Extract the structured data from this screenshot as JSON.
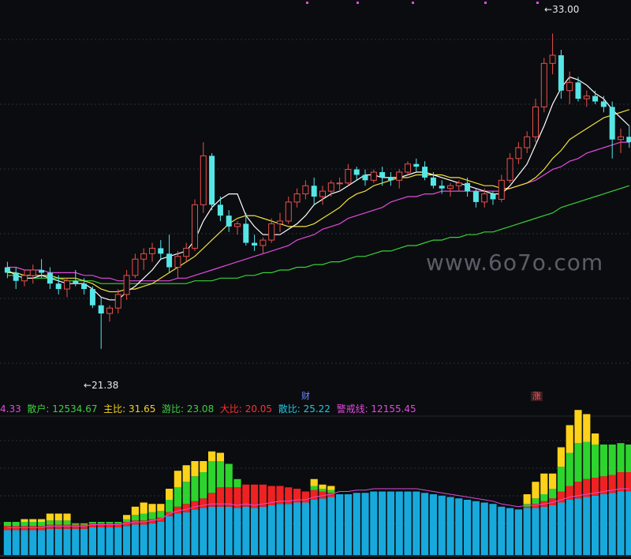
{
  "price_panel": {
    "high_label": "33.00",
    "low_label": "21.38",
    "watermark": "www.6o7o.com"
  },
  "events": [
    {
      "text": "财",
      "color": "#6f8cff"
    },
    {
      "text": "涨",
      "color": "#ff5a5a"
    }
  ],
  "indicator_legend": {
    "items": [
      {
        "label": "",
        "value": "4.33",
        "color": "#e04bdb"
      },
      {
        "label": "散户: ",
        "value": "12534.67",
        "color": "#3ed13e"
      },
      {
        "label": "主比: ",
        "value": "31.65",
        "color": "#f2d11b"
      },
      {
        "label": "游比: ",
        "value": "23.08",
        "color": "#3ed13e"
      },
      {
        "label": "大比: ",
        "value": "20.05",
        "color": "#ff3030"
      },
      {
        "label": "散比: ",
        "value": "25.22",
        "color": "#22c7e0"
      },
      {
        "label": "警戒线: ",
        "value": "12155.45",
        "color": "#e04bdb"
      }
    ]
  },
  "colors": {
    "up": "#e8504a",
    "down": "#56e6e6",
    "ma5": "#ffffff",
    "ma10": "#f1e03a",
    "ma20": "#e04bdb",
    "ma60": "#37d137",
    "stack_blue": "#17a9dc",
    "stack_red": "#ee2222",
    "stack_green": "#2dd42d",
    "stack_yellow": "#ffd21a",
    "grid": "#2a2f3a"
  },
  "chart_data": {
    "type": "candlestick",
    "price_range": [
      20,
      34
    ],
    "candles": [
      [
        24.4,
        24.6,
        24.0,
        24.2
      ],
      [
        24.2,
        24.4,
        23.6,
        23.9
      ],
      [
        23.9,
        24.3,
        23.7,
        24.1
      ],
      [
        24.1,
        24.5,
        23.8,
        24.3
      ],
      [
        24.3,
        24.7,
        24.0,
        24.2
      ],
      [
        24.2,
        24.4,
        23.6,
        23.8
      ],
      [
        23.8,
        24.1,
        23.4,
        23.6
      ],
      [
        23.6,
        24.0,
        23.3,
        23.9
      ],
      [
        23.9,
        24.3,
        23.7,
        23.8
      ],
      [
        23.8,
        24.0,
        23.4,
        23.6
      ],
      [
        23.6,
        23.7,
        22.9,
        23.0
      ],
      [
        23.0,
        23.3,
        21.4,
        22.7
      ],
      [
        22.7,
        23.0,
        22.4,
        22.9
      ],
      [
        22.9,
        23.6,
        22.7,
        23.4
      ],
      [
        23.4,
        24.3,
        23.2,
        24.1
      ],
      [
        24.1,
        24.9,
        24.0,
        24.7
      ],
      [
        24.7,
        25.1,
        24.3,
        24.9
      ],
      [
        24.9,
        25.3,
        24.6,
        25.1
      ],
      [
        25.1,
        25.4,
        24.7,
        24.9
      ],
      [
        24.9,
        25.6,
        24.2,
        24.4
      ],
      [
        24.4,
        25.0,
        24.0,
        24.8
      ],
      [
        24.8,
        25.3,
        24.6,
        25.1
      ],
      [
        25.1,
        26.9,
        25.0,
        26.7
      ],
      [
        26.7,
        29.0,
        26.4,
        28.5
      ],
      [
        28.5,
        28.6,
        26.5,
        26.7
      ],
      [
        26.7,
        27.0,
        26.1,
        26.3
      ],
      [
        26.3,
        26.5,
        25.7,
        25.9
      ],
      [
        25.9,
        26.1,
        25.6,
        26.0
      ],
      [
        26.0,
        26.4,
        25.2,
        25.3
      ],
      [
        25.3,
        25.6,
        25.0,
        25.2
      ],
      [
        25.2,
        25.5,
        24.9,
        25.4
      ],
      [
        25.4,
        26.2,
        25.3,
        26.0
      ],
      [
        26.0,
        26.4,
        25.7,
        26.1
      ],
      [
        26.1,
        27.0,
        26.0,
        26.8
      ],
      [
        26.8,
        27.3,
        26.6,
        27.1
      ],
      [
        27.1,
        27.6,
        26.9,
        27.4
      ],
      [
        27.4,
        27.7,
        26.7,
        27.0
      ],
      [
        27.0,
        27.4,
        26.7,
        27.2
      ],
      [
        27.2,
        27.6,
        27.0,
        27.5
      ],
      [
        27.5,
        27.7,
        27.2,
        27.5
      ],
      [
        27.5,
        28.2,
        27.4,
        28.0
      ],
      [
        28.0,
        28.1,
        27.6,
        27.8
      ],
      [
        27.8,
        28.0,
        27.4,
        27.6
      ],
      [
        27.6,
        28.0,
        27.5,
        27.9
      ],
      [
        27.9,
        28.1,
        27.4,
        27.7
      ],
      [
        27.7,
        27.9,
        27.4,
        27.6
      ],
      [
        27.6,
        28.0,
        27.3,
        27.9
      ],
      [
        27.9,
        28.3,
        27.8,
        28.2
      ],
      [
        28.2,
        28.4,
        27.9,
        28.1
      ],
      [
        28.1,
        28.3,
        27.6,
        27.7
      ],
      [
        27.7,
        27.9,
        27.3,
        27.4
      ],
      [
        27.4,
        27.6,
        27.1,
        27.3
      ],
      [
        27.3,
        27.5,
        27.0,
        27.4
      ],
      [
        27.4,
        27.6,
        27.2,
        27.5
      ],
      [
        27.5,
        27.7,
        27.0,
        27.2
      ],
      [
        27.2,
        27.3,
        26.6,
        26.8
      ],
      [
        26.8,
        27.3,
        26.6,
        27.1
      ],
      [
        27.1,
        27.2,
        26.7,
        26.9
      ],
      [
        26.9,
        27.8,
        26.8,
        27.6
      ],
      [
        27.6,
        28.6,
        27.5,
        28.4
      ],
      [
        28.4,
        29.0,
        28.2,
        28.8
      ],
      [
        28.8,
        29.4,
        28.6,
        29.2
      ],
      [
        29.2,
        30.6,
        29.0,
        30.3
      ],
      [
        30.3,
        32.1,
        30.1,
        31.9
      ],
      [
        31.9,
        33.0,
        31.5,
        32.2
      ],
      [
        32.2,
        32.4,
        30.6,
        30.9
      ],
      [
        30.9,
        31.6,
        30.4,
        31.2
      ],
      [
        31.2,
        31.4,
        30.5,
        30.6
      ],
      [
        30.6,
        30.9,
        30.3,
        30.7
      ],
      [
        30.7,
        30.9,
        30.4,
        30.5
      ],
      [
        30.5,
        30.7,
        30.1,
        30.3
      ],
      [
        30.3,
        30.5,
        28.4,
        29.1
      ],
      [
        29.1,
        29.5,
        28.6,
        29.2
      ],
      [
        29.2,
        29.6,
        28.8,
        29.0
      ]
    ],
    "ma5": [
      24.3,
      24.1,
      24.0,
      24.0,
      24.1,
      24.0,
      23.9,
      23.8,
      23.8,
      23.8,
      23.6,
      23.3,
      23.2,
      23.2,
      23.5,
      23.7,
      24.0,
      24.3,
      24.7,
      24.8,
      24.9,
      25.0,
      25.4,
      26.1,
      26.6,
      26.9,
      27.1,
      27.1,
      26.3,
      25.9,
      25.6,
      25.6,
      25.6,
      25.8,
      26.0,
      26.3,
      26.7,
      26.9,
      27.1,
      27.2,
      27.4,
      27.6,
      27.8,
      27.8,
      27.7,
      27.7,
      27.7,
      27.8,
      27.9,
      27.9,
      27.8,
      27.7,
      27.6,
      27.5,
      27.4,
      27.3,
      27.2,
      27.1,
      27.1,
      27.4,
      27.8,
      28.2,
      28.9,
      29.6,
      30.4,
      31.0,
      31.4,
      31.3,
      31.1,
      30.8,
      30.6,
      30.2,
      29.9,
      29.6
    ],
    "ma10": [
      24.2,
      24.2,
      24.1,
      24.1,
      24.1,
      24.1,
      24.0,
      24.0,
      24.0,
      23.9,
      23.8,
      23.6,
      23.5,
      23.5,
      23.6,
      23.6,
      23.7,
      23.8,
      24.0,
      24.2,
      24.4,
      24.6,
      24.8,
      25.1,
      25.4,
      25.7,
      26.0,
      26.2,
      26.3,
      26.3,
      26.2,
      26.1,
      26.0,
      25.9,
      25.9,
      25.9,
      26.0,
      26.2,
      26.4,
      26.6,
      26.9,
      27.1,
      27.2,
      27.4,
      27.5,
      27.6,
      27.7,
      27.7,
      27.8,
      27.8,
      27.8,
      27.8,
      27.7,
      27.7,
      27.6,
      27.5,
      27.4,
      27.4,
      27.3,
      27.3,
      27.4,
      27.5,
      27.7,
      28.0,
      28.4,
      28.7,
      29.1,
      29.3,
      29.5,
      29.7,
      29.9,
      30.0,
      30.1,
      30.2
    ],
    "ma20": [
      24.4,
      24.4,
      24.3,
      24.3,
      24.3,
      24.2,
      24.2,
      24.2,
      24.2,
      24.1,
      24.1,
      24.0,
      24.0,
      23.9,
      23.9,
      23.9,
      23.9,
      23.9,
      23.9,
      23.9,
      24.0,
      24.0,
      24.1,
      24.2,
      24.3,
      24.4,
      24.5,
      24.6,
      24.7,
      24.8,
      24.9,
      25.0,
      25.1,
      25.2,
      25.4,
      25.5,
      25.6,
      25.8,
      25.9,
      26.0,
      26.2,
      26.3,
      26.4,
      26.5,
      26.6,
      26.8,
      26.9,
      27.0,
      27.0,
      27.1,
      27.1,
      27.2,
      27.2,
      27.2,
      27.2,
      27.2,
      27.2,
      27.2,
      27.2,
      27.3,
      27.4,
      27.5,
      27.6,
      27.8,
      28.0,
      28.1,
      28.3,
      28.4,
      28.6,
      28.7,
      28.8,
      28.9,
      29.0,
      29.0
    ],
    "ma60": [
      24.1,
      24.1,
      24.0,
      24.0,
      24.0,
      24.0,
      24.0,
      23.9,
      23.9,
      23.9,
      23.9,
      23.8,
      23.8,
      23.8,
      23.8,
      23.8,
      23.8,
      23.8,
      23.8,
      23.8,
      23.8,
      23.8,
      23.9,
      23.9,
      23.9,
      24.0,
      24.0,
      24.0,
      24.1,
      24.1,
      24.2,
      24.2,
      24.3,
      24.3,
      24.4,
      24.4,
      24.5,
      24.5,
      24.6,
      24.6,
      24.7,
      24.8,
      24.8,
      24.9,
      25.0,
      25.0,
      25.1,
      25.2,
      25.2,
      25.3,
      25.4,
      25.4,
      25.5,
      25.5,
      25.6,
      25.6,
      25.7,
      25.7,
      25.8,
      25.9,
      26.0,
      26.1,
      26.2,
      26.3,
      26.4,
      26.6,
      26.7,
      26.8,
      26.9,
      27.0,
      27.1,
      27.2,
      27.3,
      27.4
    ],
    "stack_range": [
      0,
      1
    ],
    "stacks": [
      [
        0.18,
        0.03,
        0.03,
        0.0
      ],
      [
        0.18,
        0.03,
        0.03,
        0.0
      ],
      [
        0.18,
        0.03,
        0.03,
        0.02
      ],
      [
        0.18,
        0.03,
        0.03,
        0.02
      ],
      [
        0.18,
        0.03,
        0.03,
        0.02
      ],
      [
        0.19,
        0.03,
        0.03,
        0.05
      ],
      [
        0.19,
        0.03,
        0.03,
        0.05
      ],
      [
        0.19,
        0.03,
        0.03,
        0.05
      ],
      [
        0.19,
        0.03,
        0.01,
        0.0
      ],
      [
        0.19,
        0.03,
        0.01,
        0.0
      ],
      [
        0.2,
        0.03,
        0.01,
        0.0
      ],
      [
        0.2,
        0.03,
        0.01,
        0.0
      ],
      [
        0.2,
        0.03,
        0.01,
        0.0
      ],
      [
        0.2,
        0.03,
        0.01,
        0.0
      ],
      [
        0.21,
        0.03,
        0.02,
        0.03
      ],
      [
        0.22,
        0.03,
        0.04,
        0.06
      ],
      [
        0.22,
        0.03,
        0.05,
        0.08
      ],
      [
        0.23,
        0.03,
        0.05,
        0.06
      ],
      [
        0.24,
        0.03,
        0.05,
        0.05
      ],
      [
        0.28,
        0.03,
        0.09,
        0.08
      ],
      [
        0.3,
        0.05,
        0.14,
        0.12
      ],
      [
        0.31,
        0.06,
        0.16,
        0.12
      ],
      [
        0.33,
        0.06,
        0.18,
        0.11
      ],
      [
        0.34,
        0.07,
        0.19,
        0.08
      ],
      [
        0.35,
        0.1,
        0.23,
        0.07
      ],
      [
        0.35,
        0.14,
        0.19,
        0.06
      ],
      [
        0.35,
        0.14,
        0.17,
        0.0
      ],
      [
        0.34,
        0.15,
        0.06,
        0.0
      ],
      [
        0.35,
        0.16,
        0.0,
        0.0
      ],
      [
        0.34,
        0.17,
        0.0,
        0.0
      ],
      [
        0.35,
        0.16,
        0.0,
        0.0
      ],
      [
        0.36,
        0.14,
        0.0,
        0.0
      ],
      [
        0.37,
        0.13,
        0.0,
        0.0
      ],
      [
        0.37,
        0.12,
        0.0,
        0.0
      ],
      [
        0.38,
        0.1,
        0.0,
        0.0
      ],
      [
        0.38,
        0.08,
        0.0,
        0.0
      ],
      [
        0.4,
        0.07,
        0.03,
        0.05
      ],
      [
        0.41,
        0.05,
        0.02,
        0.03
      ],
      [
        0.42,
        0.03,
        0.02,
        0.03
      ],
      [
        0.44,
        0.0,
        0.0,
        0.0
      ],
      [
        0.44,
        0.0,
        0.0,
        0.0
      ],
      [
        0.45,
        0.0,
        0.0,
        0.0
      ],
      [
        0.45,
        0.0,
        0.0,
        0.0
      ],
      [
        0.46,
        0.0,
        0.0,
        0.0
      ],
      [
        0.46,
        0.0,
        0.0,
        0.0
      ],
      [
        0.46,
        0.0,
        0.0,
        0.0
      ],
      [
        0.46,
        0.0,
        0.0,
        0.0
      ],
      [
        0.46,
        0.0,
        0.0,
        0.0
      ],
      [
        0.46,
        0.0,
        0.0,
        0.0
      ],
      [
        0.45,
        0.0,
        0.0,
        0.0
      ],
      [
        0.44,
        0.0,
        0.0,
        0.0
      ],
      [
        0.43,
        0.0,
        0.0,
        0.0
      ],
      [
        0.42,
        0.0,
        0.0,
        0.0
      ],
      [
        0.41,
        0.0,
        0.0,
        0.0
      ],
      [
        0.4,
        0.0,
        0.0,
        0.0
      ],
      [
        0.39,
        0.0,
        0.0,
        0.0
      ],
      [
        0.38,
        0.0,
        0.0,
        0.0
      ],
      [
        0.37,
        0.0,
        0.0,
        0.0
      ],
      [
        0.35,
        0.0,
        0.0,
        0.0
      ],
      [
        0.34,
        0.0,
        0.0,
        0.0
      ],
      [
        0.33,
        0.0,
        0.0,
        0.0
      ],
      [
        0.34,
        0.01,
        0.02,
        0.07
      ],
      [
        0.34,
        0.03,
        0.04,
        0.12
      ],
      [
        0.35,
        0.04,
        0.05,
        0.15
      ],
      [
        0.36,
        0.05,
        0.07,
        0.11
      ],
      [
        0.38,
        0.08,
        0.18,
        0.14
      ],
      [
        0.4,
        0.1,
        0.24,
        0.2
      ],
      [
        0.41,
        0.12,
        0.28,
        0.24
      ],
      [
        0.42,
        0.13,
        0.27,
        0.2
      ],
      [
        0.43,
        0.13,
        0.24,
        0.08
      ],
      [
        0.44,
        0.13,
        0.23,
        0.0
      ],
      [
        0.45,
        0.13,
        0.22,
        0.0
      ],
      [
        0.46,
        0.14,
        0.21,
        0.0
      ],
      [
        0.46,
        0.14,
        0.2,
        0.0
      ]
    ]
  }
}
